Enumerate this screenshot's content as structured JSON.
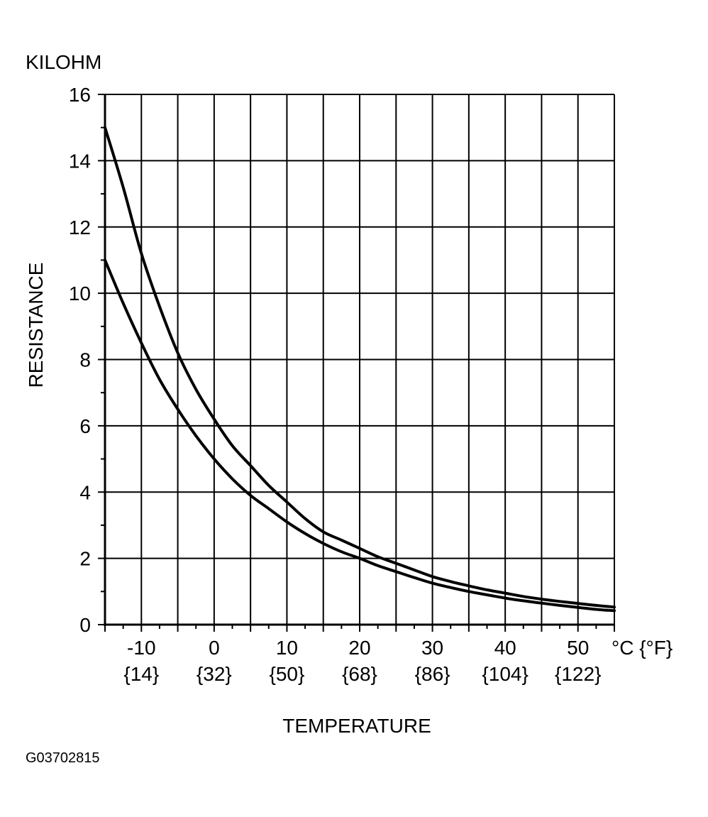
{
  "figure_id": "G03702815",
  "chart_data": {
    "type": "line",
    "unit_label": "KILOHM",
    "ylabel": "RESISTANCE",
    "xlabel": "TEMPERATURE",
    "x_unit_label": "°C {°F}",
    "xlim": [
      -15,
      55
    ],
    "ylim": [
      0,
      16
    ],
    "grid": true,
    "x_major_ticks": [
      -10,
      0,
      10,
      20,
      30,
      40,
      50
    ],
    "x_tick_labels_c": [
      "-10",
      "0",
      "10",
      "20",
      "30",
      "40",
      "50"
    ],
    "x_tick_labels_f": [
      "{14}",
      "{32}",
      "{50}",
      "{68}",
      "{86}",
      "{104}",
      "{122}"
    ],
    "y_major_ticks": [
      0,
      2,
      4,
      6,
      8,
      10,
      12,
      14,
      16
    ],
    "y_tick_labels": [
      "0",
      "2",
      "4",
      "6",
      "8",
      "10",
      "12",
      "14",
      "16"
    ],
    "series": [
      {
        "x": [
          -15,
          -12.5,
          -10,
          -7.5,
          -5,
          -2.5,
          0,
          2.5,
          5,
          7.5,
          10,
          12.5,
          15,
          17.5,
          20,
          22.5,
          25,
          27.5,
          30,
          32.5,
          35,
          37.5,
          40,
          42.5,
          45,
          47.5,
          50,
          52.5,
          55
        ],
        "values": [
          15.0,
          13.2,
          11.2,
          9.6,
          8.2,
          7.1,
          6.2,
          5.4,
          4.8,
          4.2,
          3.7,
          3.2,
          2.8,
          2.55,
          2.3,
          2.05,
          1.85,
          1.65,
          1.45,
          1.3,
          1.17,
          1.05,
          0.95,
          0.85,
          0.77,
          0.7,
          0.64,
          0.58,
          0.53
        ]
      },
      {
        "x": [
          -15,
          -12.5,
          -10,
          -7.5,
          -5,
          -2.5,
          0,
          2.5,
          5,
          7.5,
          10,
          12.5,
          15,
          17.5,
          20,
          22.5,
          25,
          27.5,
          30,
          32.5,
          35,
          37.5,
          40,
          42.5,
          45,
          47.5,
          50,
          52.5,
          55
        ],
        "values": [
          11.0,
          9.7,
          8.5,
          7.4,
          6.5,
          5.7,
          5.0,
          4.4,
          3.9,
          3.5,
          3.1,
          2.75,
          2.45,
          2.2,
          2.0,
          1.78,
          1.6,
          1.42,
          1.25,
          1.12,
          1.0,
          0.9,
          0.8,
          0.72,
          0.65,
          0.58,
          0.52,
          0.46,
          0.42
        ]
      }
    ]
  }
}
